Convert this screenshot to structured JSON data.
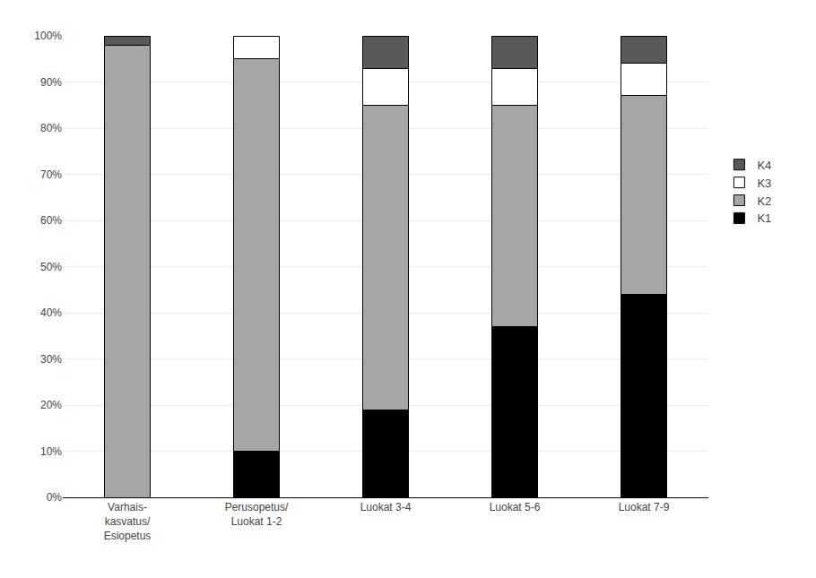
{
  "chart_data": {
    "type": "bar",
    "stacked": true,
    "categories": [
      "Varhais-\nkasvatus/\nEsiopetus",
      "Perusopetus/\nLuokat 1-2",
      "Luokat 3-4",
      "Luokat 5-6",
      "Luokat 7-9"
    ],
    "series": [
      {
        "name": "K1",
        "color": "#000000",
        "values": [
          0,
          10,
          19,
          37,
          44
        ]
      },
      {
        "name": "K2",
        "color": "#a6a6a6",
        "values": [
          98,
          85,
          66,
          48,
          43
        ]
      },
      {
        "name": "K3",
        "color": "#ffffff",
        "values": [
          0,
          5,
          8,
          8,
          7
        ]
      },
      {
        "name": "K4",
        "color": "#595959",
        "values": [
          2,
          0,
          7,
          7,
          6
        ]
      }
    ],
    "ylim": [
      0,
      100
    ],
    "yticks": [
      {
        "value": 0,
        "label": "0%"
      },
      {
        "value": 10,
        "label": "10%"
      },
      {
        "value": 20,
        "label": "20%"
      },
      {
        "value": 30,
        "label": "30%"
      },
      {
        "value": 40,
        "label": "40%"
      },
      {
        "value": 50,
        "label": "50%"
      },
      {
        "value": 60,
        "label": "60%"
      },
      {
        "value": 70,
        "label": "70%"
      },
      {
        "value": 80,
        "label": "80%"
      },
      {
        "value": 90,
        "label": "90%"
      },
      {
        "value": 100,
        "label": "100%"
      }
    ],
    "grid": true,
    "legend": "right"
  }
}
